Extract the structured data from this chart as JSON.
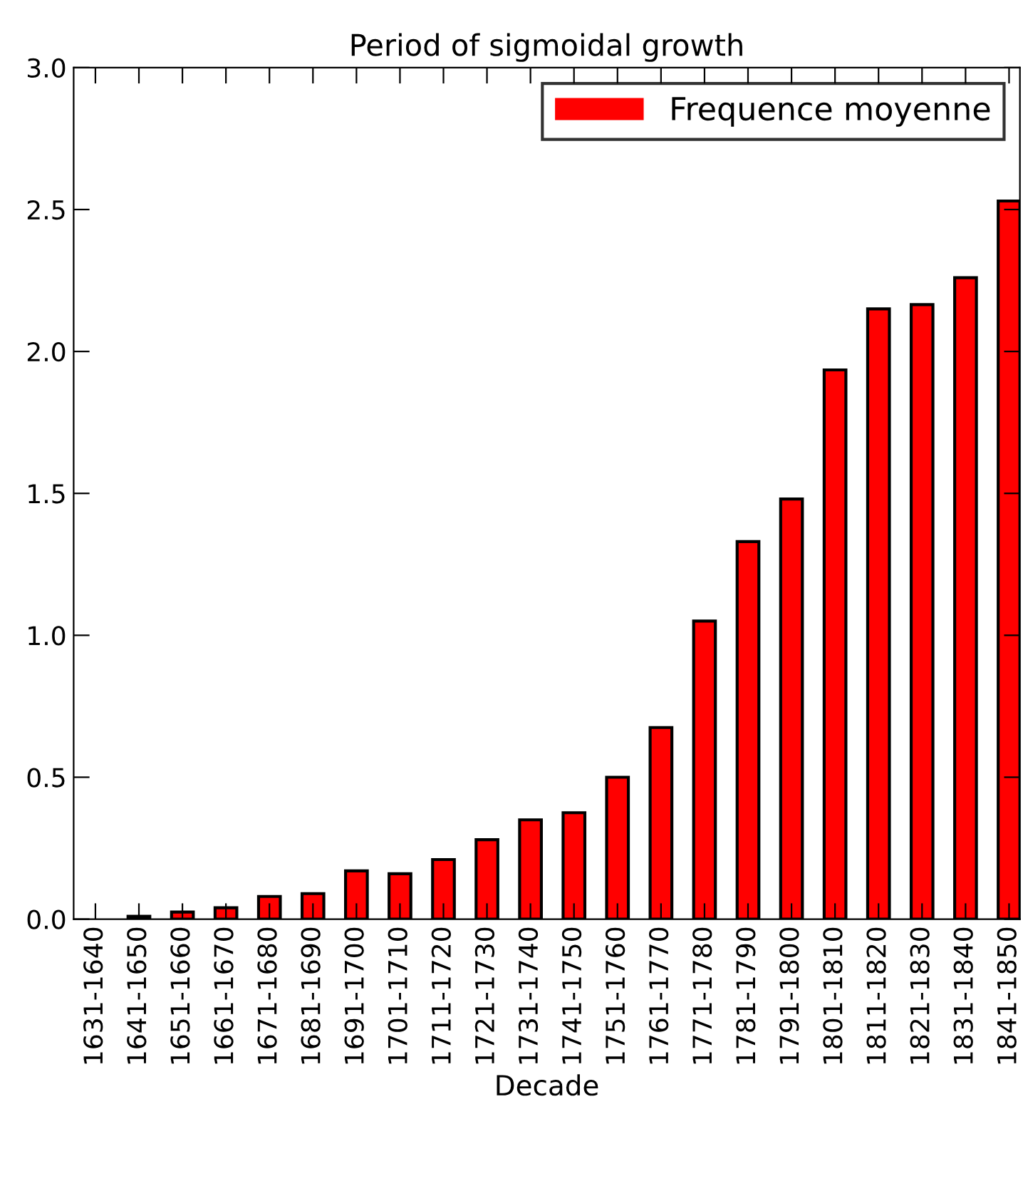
{
  "chart_data": {
    "type": "bar",
    "title": "Period of sigmoidal growth",
    "xlabel": "Decade",
    "categories": [
      "1631-1640",
      "1641-1650",
      "1651-1660",
      "1661-1670",
      "1671-1680",
      "1681-1690",
      "1691-1700",
      "1701-1710",
      "1711-1720",
      "1721-1730",
      "1731-1740",
      "1741-1750",
      "1751-1760",
      "1761-1770",
      "1771-1780",
      "1781-1790",
      "1791-1800",
      "1801-1810",
      "1811-1820",
      "1821-1830",
      "1831-1840",
      "1841-1850"
    ],
    "series": [
      {
        "name": "Frequence moyenne",
        "color": "#ff0000",
        "values": [
          0,
          0.01,
          0.025,
          0.04,
          0.08,
          0.09,
          0.17,
          0.16,
          0.21,
          0.28,
          0.35,
          0.375,
          0.5,
          0.675,
          1.05,
          1.33,
          1.48,
          1.935,
          2.15,
          2.165,
          2.26,
          2.53
        ]
      }
    ],
    "ylim": [
      0,
      3.0
    ],
    "yticks": [
      {
        "value": 0,
        "label": "0.0"
      },
      0.5,
      {
        "value": 1,
        "label": "1.0"
      },
      1.5,
      {
        "value": 2,
        "label": "2.0"
      },
      2.5,
      {
        "value": 3,
        "label": "3.0"
      }
    ],
    "legend": "top right",
    "grid": false
  }
}
